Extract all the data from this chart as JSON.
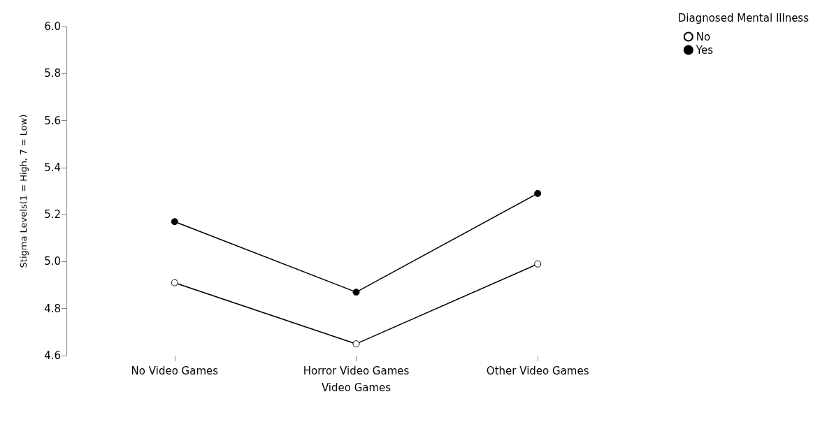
{
  "chart_data": {
    "type": "line",
    "xlabel": "Video Games",
    "ylabel": "Stigma Levels(1 = High, 7 = Low)",
    "legend_title": "Diagnosed Mental Illness",
    "categories": [
      "No Video Games",
      "Horror Video Games",
      "Other Video Games"
    ],
    "series": [
      {
        "name": "No",
        "color": "#ffffff",
        "values": [
          4.91,
          4.65,
          4.99
        ]
      },
      {
        "name": "Yes",
        "color": "#000000",
        "values": [
          5.17,
          4.87,
          5.29
        ]
      }
    ],
    "ylim": [
      4.6,
      6.0
    ],
    "yticks": [
      4.6,
      4.8,
      {
        "value": 5,
        "label": "5.0"
      },
      5.2,
      5.4,
      5.6,
      5.8,
      {
        "value": 6,
        "label": "6.0"
      }
    ],
    "grid": false,
    "legend": "top right",
    "marker": "circle",
    "line_style": "solid"
  }
}
